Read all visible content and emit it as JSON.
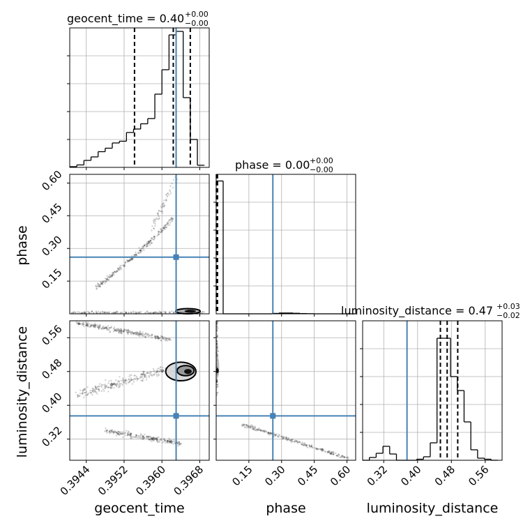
{
  "chart_data": {
    "type": "corner",
    "parameters": [
      "geocent_time",
      "phase",
      "luminosity_distance"
    ],
    "truth": {
      "geocent_time": 0.3963,
      "phase": 0.26,
      "luminosity_distance": 0.375
    },
    "colors": {
      "truth": "#4682b4",
      "hist": "#000000",
      "grid": "#b0b0b0"
    },
    "grid": true,
    "titles": [
      {
        "param": "geocent_time",
        "label": "geocent_time = 0.40",
        "plus": "+0.00",
        "minus": "−0.00"
      },
      {
        "param": "phase",
        "label": "phase = 0.00",
        "plus": "+0.00",
        "minus": "−0.00"
      },
      {
        "param": "luminosity_distance",
        "label": "luminosity_distance = 0.47",
        "plus": "+0.03",
        "minus": "−0.02"
      }
    ],
    "axes": {
      "geocent_time": {
        "label": "geocent_time",
        "range": [
          0.39405,
          0.397
        ],
        "ticks": [
          "0.3944",
          "0.3952",
          "0.3960",
          "0.3968"
        ],
        "tick_values": [
          0.3944,
          0.3952,
          0.396,
          0.3968
        ]
      },
      "phase": {
        "label": "phase",
        "range": [
          0.0,
          0.64
        ],
        "ticks": [
          "0.15",
          "0.30",
          "0.45",
          "0.60"
        ],
        "tick_values": [
          0.15,
          0.3,
          0.45,
          0.6
        ]
      },
      "luminosity_distance": {
        "label": "luminosity_distance",
        "range": [
          0.27,
          0.6
        ],
        "ticks": [
          "0.32",
          "0.40",
          "0.48",
          "0.56"
        ],
        "tick_values": [
          0.32,
          0.4,
          0.48,
          0.56
        ]
      }
    },
    "histograms": {
      "geocent_time": {
        "edges": [
          0.39405,
          0.3942,
          0.39435,
          0.3945,
          0.39465,
          0.3948,
          0.39495,
          0.3951,
          0.39525,
          0.3954,
          0.39555,
          0.3957,
          0.39585,
          0.396,
          0.39615,
          0.3963,
          0.39645,
          0.3966,
          0.39675,
          0.3969
        ],
        "counts": [
          0.2,
          0.7,
          2,
          3,
          4.5,
          5.5,
          7,
          7.5,
          10,
          11,
          12.5,
          14,
          21,
          28,
          38,
          39,
          20,
          8,
          0.6
        ],
        "ylim": [
          0,
          40
        ],
        "quantiles": [
          0.39542,
          0.39624,
          0.3966
        ]
      },
      "phase": {
        "edges": [
          0.0,
          0.032,
          0.064,
          0.096,
          0.128,
          0.16,
          0.192,
          0.224,
          0.256,
          0.288,
          0.32,
          0.352,
          0.384,
          0.416,
          0.448,
          0.48,
          0.512,
          0.544,
          0.576,
          0.608,
          0.64
        ],
        "counts": [
          100,
          0,
          0,
          0,
          0,
          0,
          0,
          0,
          0.3,
          0.6,
          0.6,
          0.4,
          0.2,
          0.1,
          0,
          0,
          0,
          0,
          0,
          0
        ],
        "ylim": [
          0,
          105
        ],
        "quantiles": [
          0.001,
          0.003,
          0.006
        ]
      },
      "luminosity_distance": {
        "edges": [
          0.27,
          0.286,
          0.302,
          0.318,
          0.334,
          0.35,
          0.366,
          0.382,
          0.398,
          0.414,
          0.43,
          0.446,
          0.462,
          0.478,
          0.494,
          0.51,
          0.526,
          0.542,
          0.558,
          0.574,
          0.59
        ],
        "counts": [
          0,
          0.8,
          2,
          4,
          1.8,
          0,
          0,
          0,
          0.3,
          1,
          5,
          35,
          35,
          24,
          20,
          11,
          3,
          0.6,
          0.3,
          0
        ],
        "ylim": [
          0,
          40
        ],
        "quantiles": [
          0.454,
          0.47,
          0.495
        ]
      }
    }
  }
}
